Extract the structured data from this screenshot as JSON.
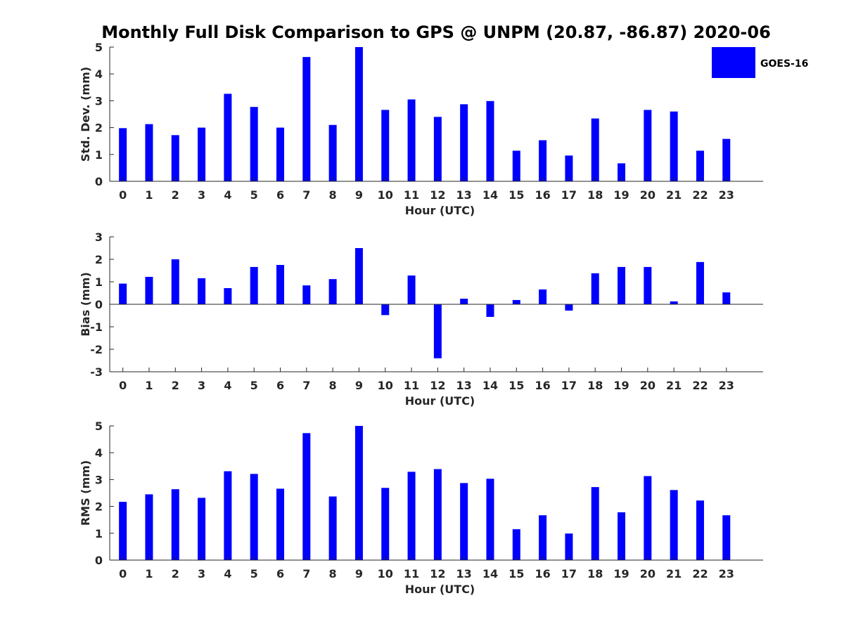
{
  "chart_data": {
    "title": "Monthly Full Disk Comparison to GPS @ UNPM (20.87, -86.87) 2020-06",
    "bar_color": "#0000ff",
    "legend": {
      "label": "GOES-16",
      "position": "top-right"
    },
    "panels": [
      {
        "type": "bar",
        "ylabel": "Std. Dev. (mm)",
        "xlabel": "Hour (UTC)",
        "ylim": [
          0,
          5
        ],
        "yticks": [
          0,
          1,
          2,
          3,
          4,
          5
        ],
        "categories": [
          "0",
          "1",
          "2",
          "3",
          "4",
          "5",
          "6",
          "7",
          "8",
          "9",
          "10",
          "11",
          "12",
          "13",
          "14",
          "15",
          "16",
          "17",
          "18",
          "19",
          "20",
          "21",
          "22",
          "23"
        ],
        "series": [
          {
            "name": "GOES-16",
            "values": [
              1.98,
              2.13,
              1.72,
              2.0,
              3.26,
              2.77,
              2.0,
              4.63,
              2.1,
              5.0,
              2.66,
              3.05,
              2.4,
              2.87,
              2.99,
              1.14,
              1.53,
              0.96,
              2.34,
              0.67,
              2.66,
              2.6,
              1.14,
              1.58
            ]
          }
        ]
      },
      {
        "type": "bar",
        "ylabel": "Bias (mm)",
        "xlabel": "Hour (UTC)",
        "ylim": [
          -3,
          3
        ],
        "yticks": [
          -3,
          -2,
          -1,
          0,
          1,
          2,
          3
        ],
        "categories": [
          "0",
          "1",
          "2",
          "3",
          "4",
          "5",
          "6",
          "7",
          "8",
          "9",
          "10",
          "11",
          "12",
          "13",
          "14",
          "15",
          "16",
          "17",
          "18",
          "19",
          "20",
          "21",
          "22",
          "23"
        ],
        "series": [
          {
            "name": "GOES-16",
            "values": [
              0.92,
              1.22,
              2.0,
              1.16,
              0.72,
              1.66,
              1.75,
              0.84,
              1.12,
              2.5,
              -0.48,
              1.28,
              -2.4,
              0.25,
              -0.56,
              0.19,
              0.66,
              -0.28,
              1.38,
              1.66,
              1.66,
              0.13,
              1.88,
              0.53
            ]
          }
        ]
      },
      {
        "type": "bar",
        "ylabel": "RMS (mm)",
        "xlabel": "Hour (UTC)",
        "ylim": [
          0,
          5
        ],
        "yticks": [
          0,
          1,
          2,
          3,
          4,
          5
        ],
        "categories": [
          "0",
          "1",
          "2",
          "3",
          "4",
          "5",
          "6",
          "7",
          "8",
          "9",
          "10",
          "11",
          "12",
          "13",
          "14",
          "15",
          "16",
          "17",
          "18",
          "19",
          "20",
          "21",
          "22",
          "23"
        ],
        "series": [
          {
            "name": "GOES-16",
            "values": [
              2.17,
              2.45,
              2.64,
              2.32,
              3.31,
              3.21,
              2.66,
              4.73,
              2.37,
              5.0,
              2.69,
              3.29,
              3.39,
              2.87,
              3.03,
              1.15,
              1.67,
              0.99,
              2.72,
              1.78,
              3.13,
              2.61,
              2.22,
              1.67
            ]
          }
        ]
      }
    ]
  }
}
